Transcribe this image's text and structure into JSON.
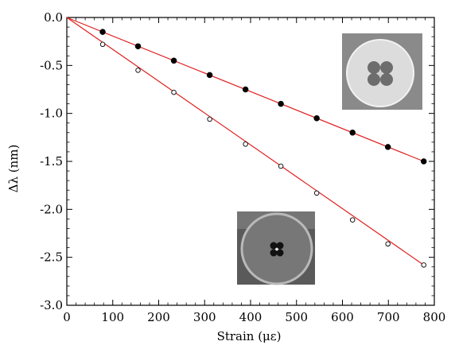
{
  "chart_data": {
    "type": "scatter",
    "title": "",
    "xlabel": "Strain (με)",
    "ylabel": "Δλ (nm)",
    "xlim": [
      0,
      800
    ],
    "ylim": [
      -3.0,
      0.0
    ],
    "grid": false,
    "xticks": [
      0,
      100,
      200,
      300,
      400,
      500,
      600,
      700,
      800
    ],
    "yticks": [
      0.0,
      -0.5,
      -1.0,
      -1.5,
      -2.0,
      -2.5,
      -3.0
    ],
    "xtick_labels": [
      "0",
      "100",
      "200",
      "300",
      "400",
      "500",
      "600",
      "700",
      "800"
    ],
    "ytick_labels": [
      "0.0",
      "-0.5",
      "-1.0",
      "-1.5",
      "-2.0",
      "-2.5",
      "-3.0"
    ],
    "series": [
      {
        "marker": "filled-circle",
        "x": [
          0,
          78,
          155,
          233,
          311,
          389,
          466,
          544,
          622,
          699,
          777
        ],
        "y": [
          0.0,
          -0.15,
          -0.3,
          -0.45,
          -0.6,
          -0.75,
          -0.9,
          -1.05,
          -1.2,
          -1.35,
          -1.5
        ],
        "fit": {
          "x": [
            0,
            777
          ],
          "y": [
            0.0,
            -1.5
          ],
          "color": "#e02020"
        }
      },
      {
        "marker": "open-circle",
        "x": [
          0,
          78,
          155,
          233,
          311,
          389,
          466,
          544,
          622,
          699,
          777
        ],
        "y": [
          0.0,
          -0.28,
          -0.55,
          -0.78,
          -1.06,
          -1.32,
          -1.55,
          -1.83,
          -2.11,
          -2.36,
          -2.58
        ],
        "fit": {
          "x": [
            0,
            777
          ],
          "y": [
            0.0,
            -2.58
          ],
          "color": "#e02020"
        }
      }
    ]
  },
  "insets": [
    {
      "name": "inset-fiber-cross-section-top",
      "description_icon": "fiber-cross-section-icon"
    },
    {
      "name": "inset-fiber-cross-section-bottom",
      "description_icon": "fiber-cross-section-icon"
    }
  ],
  "colors": {
    "fit_line": "#e02020",
    "marker_fill": "#000000",
    "marker_open": "#ffffff"
  }
}
